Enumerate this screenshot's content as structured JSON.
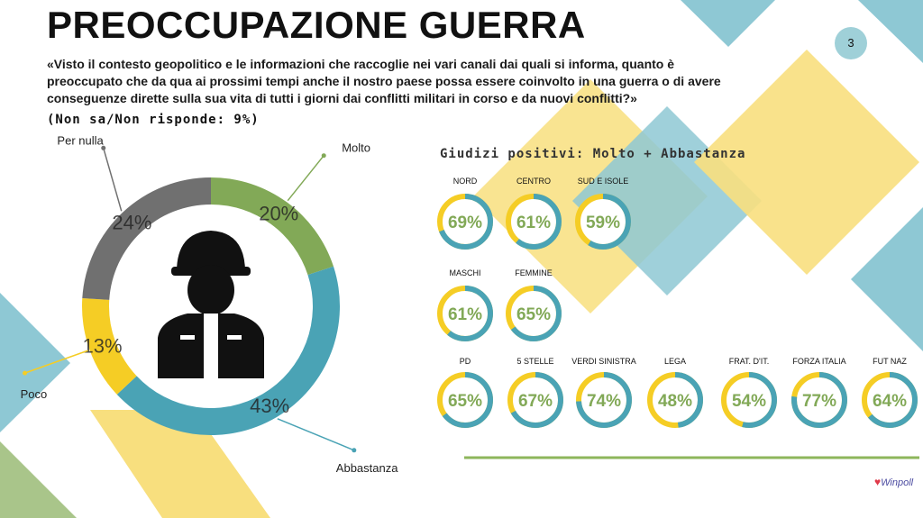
{
  "header": {
    "title": "PREOCCUPAZIONE GUERRA",
    "page_number": "3",
    "question": "«Visto il contesto geopolitico e le informazioni che raccoglie nei vari canali dai quali si informa, quanto è preoccupato che da qua ai prossimi tempi anche il nostro paese possa essere coinvolto in una guerra o di avere conseguenze dirette sulla sua vita di tutti i giorni dai conflitti militari in corso e da nuovi conflitti?»",
    "note": "(Non sa/Non risponde: 9%)"
  },
  "icons": {
    "center": "soldier-icon",
    "logo": "winpoll-logo"
  },
  "colors": {
    "teal": "#4aa3b5",
    "yellow": "#f5cd25",
    "green": "#82a957",
    "gray": "#707070",
    "donut_track": "#f5cd25",
    "donut_value": "#4aa3b5",
    "donut_text": "#82a957",
    "deco_teal": "#8ec8d4",
    "deco_yellow": "#f8df7e",
    "deco_green": "#a9c58a",
    "baseline": "#8db65b"
  },
  "chart_data": [
    {
      "type": "pie",
      "variant": "donut",
      "labels": [
        "Molto",
        "Abbastanza",
        "Poco",
        "Per nulla"
      ],
      "values": [
        20,
        43,
        13,
        24
      ],
      "value_labels": [
        "20%",
        "43%",
        "13%",
        "24%"
      ],
      "colors": [
        "#82a957",
        "#4aa3b5",
        "#f5cd25",
        "#707070"
      ]
    },
    {
      "type": "pie",
      "variant": "small-donuts",
      "title": "Giudizi positivi: Molto + Abbastanza",
      "groups": [
        {
          "items": [
            {
              "label": "NORD",
              "value": 69,
              "display": "69%"
            },
            {
              "label": "CENTRO",
              "value": 61,
              "display": "61%"
            },
            {
              "label": "SUD E ISOLE",
              "value": 59,
              "display": "59%"
            }
          ]
        },
        {
          "items": [
            {
              "label": "MASCHI",
              "value": 61,
              "display": "61%"
            },
            {
              "label": "FEMMINE",
              "value": 65,
              "display": "65%"
            }
          ]
        },
        {
          "items": [
            {
              "label": "PD",
              "value": 65,
              "display": "65%"
            },
            {
              "label": "5 STELLE",
              "value": 67,
              "display": "67%"
            },
            {
              "label": "VERDI SINISTRA",
              "value": 74,
              "display": "74%"
            },
            {
              "label": "LEGA",
              "value": 48,
              "display": "48%"
            },
            {
              "label": "FRAT. D'IT.",
              "value": 54,
              "display": "54%"
            },
            {
              "label": "FORZA ITALIA",
              "value": 77,
              "display": "77%"
            },
            {
              "label": "FUT NAZ",
              "value": 64,
              "display": "64%"
            }
          ]
        }
      ]
    }
  ],
  "logo_text": "Winpoll"
}
